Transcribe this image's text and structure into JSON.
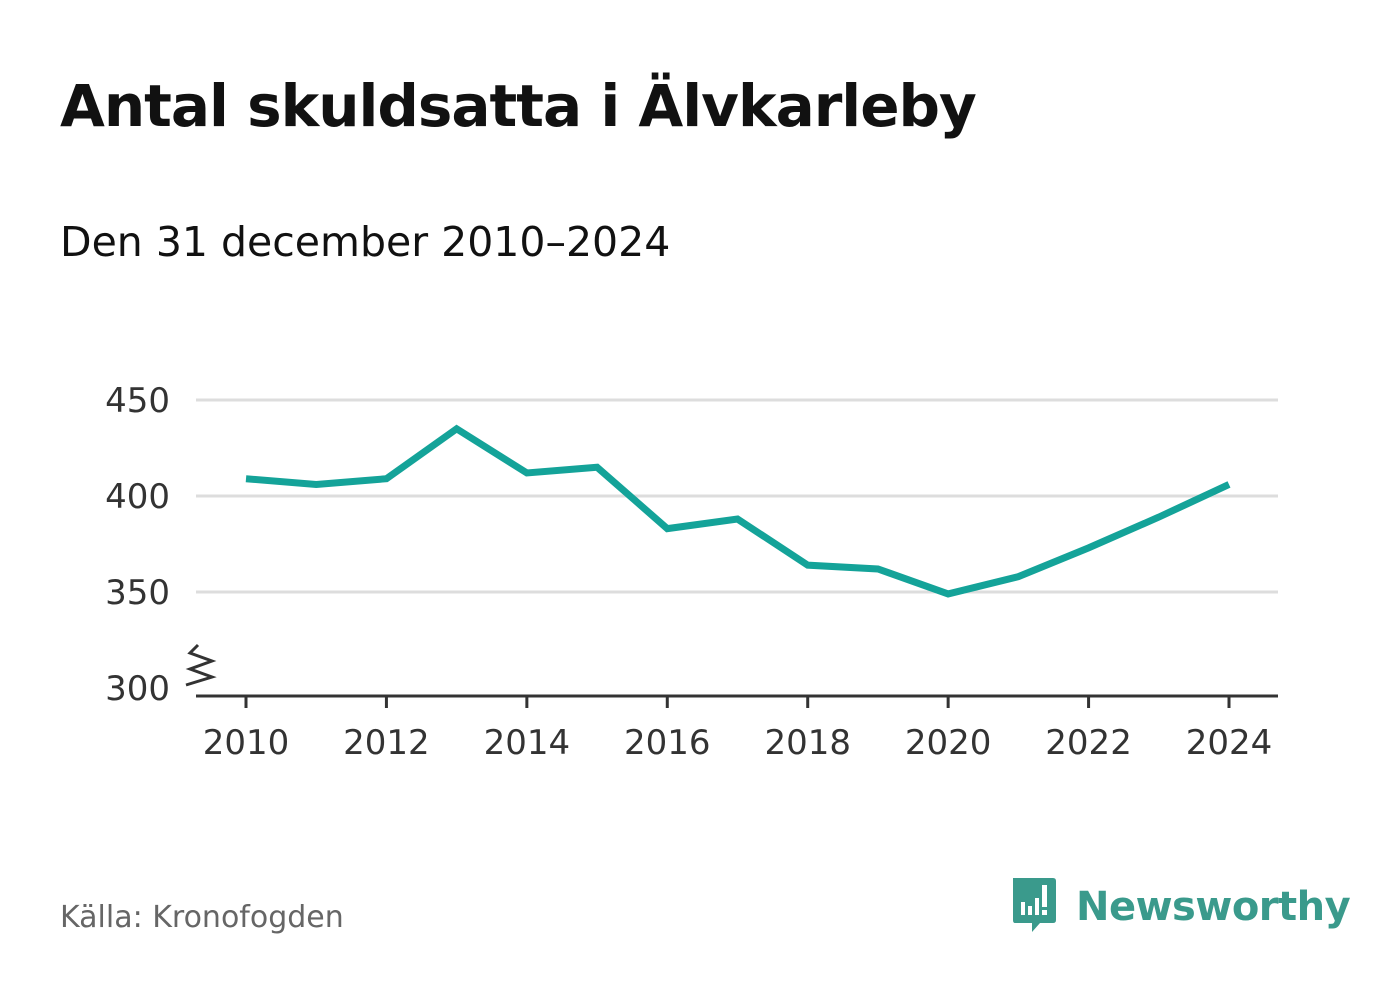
{
  "title": "Antal skuldsatta i Älvkarleby",
  "subtitle": "Den 31 december 2010–2024",
  "source": "Källa: Kronofogden",
  "brand": "Newsworthy",
  "colors": {
    "line": "#14a399",
    "brand": "#3a9a8c",
    "grid": "#dddddd",
    "axis": "#333333"
  },
  "chart_data": {
    "type": "line",
    "title": "Antal skuldsatta i Älvkarleby",
    "subtitle": "Den 31 december 2010–2024",
    "x": [
      2010,
      2011,
      2012,
      2013,
      2014,
      2015,
      2016,
      2017,
      2018,
      2019,
      2020,
      2021,
      2022,
      2023,
      2024
    ],
    "series": [
      {
        "name": "Antal skuldsatta",
        "values": [
          409,
          406,
          409,
          435,
          412,
          415,
          383,
          388,
          364,
          362,
          349,
          358,
          373,
          389,
          406
        ]
      }
    ],
    "x_ticks": [
      "2010",
      "2012",
      "2014",
      "2016",
      "2018",
      "2020",
      "2022",
      "2024"
    ],
    "y_ticks": [
      "300",
      "350",
      "400",
      "450"
    ],
    "ylim": [
      300,
      450
    ],
    "xlim": [
      2010,
      2024
    ],
    "axis_break": true,
    "grid": true,
    "xlabel": "",
    "ylabel": ""
  }
}
